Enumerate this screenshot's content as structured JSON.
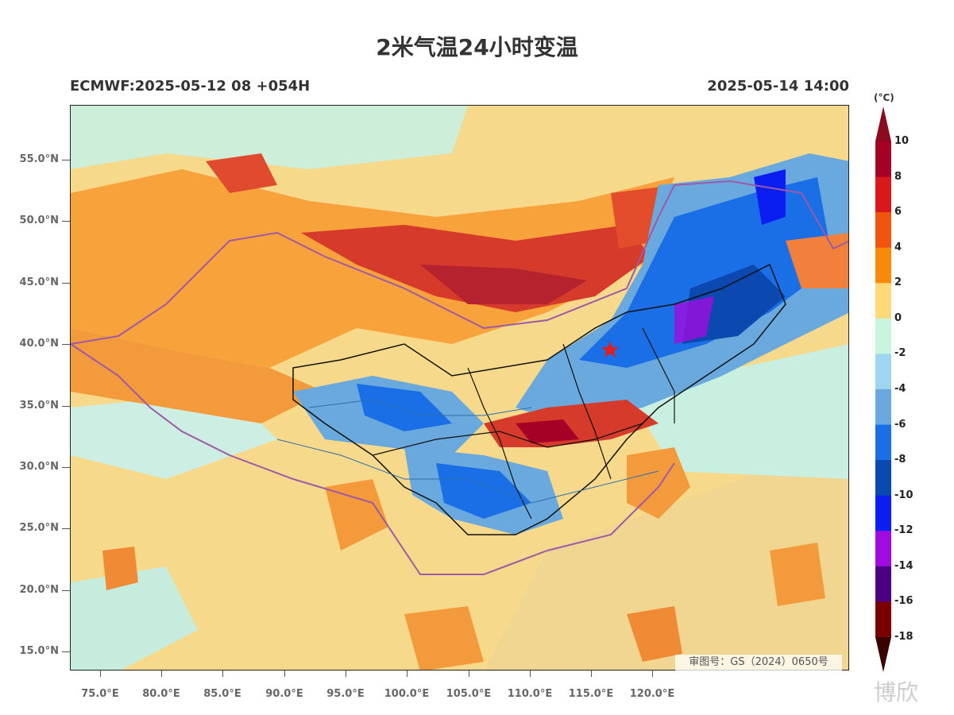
{
  "title": "2米气温24小时变温",
  "subtitle_left": "ECMWF:2025-05-12 08 +054H",
  "subtitle_right": "2025-05-14 14:00",
  "lat_labels": [
    "55.0°N",
    "50.0°N",
    "45.0°N",
    "40.0°N",
    "35.0°N",
    "30.0°N",
    "25.0°N",
    "20.0°N",
    "15.0°N"
  ],
  "lon_labels": [
    "75.0°E",
    "80.0°E",
    "85.0°E",
    "90.0°E",
    "95.0°E",
    "100.0°E",
    "105.0°E",
    "110.0°E",
    "115.0°E",
    "120.0°E"
  ],
  "colorbar": {
    "unit": "(°C)",
    "labels": [
      "10",
      "8",
      "6",
      "4",
      "2",
      "0",
      "-2",
      "-4",
      "-6",
      "-8",
      "-10",
      "-12",
      "-14",
      "-16",
      "-18"
    ],
    "colors": [
      "#a50026",
      "#d7191c",
      "#f0540f",
      "#f88a0a",
      "#fdd97a",
      "#c8f5e0",
      "#9ed5f0",
      "#6aa9dd",
      "#1a6fe6",
      "#0b48b0",
      "#0a1ef2",
      "#a00ce0",
      "#4a0080",
      "#7a0000"
    ]
  },
  "watermark": "审图号：GS（2024）0650号",
  "brand": "博欣"
}
